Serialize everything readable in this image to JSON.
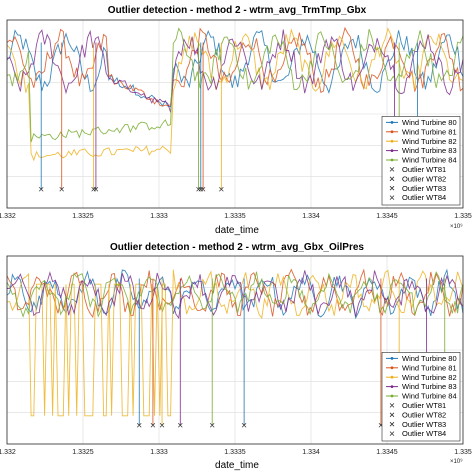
{
  "chart_data": [
    {
      "type": "line",
      "title": "Outlier detection - method 2 - wtrm_avg_TrmTmp_Gbx",
      "xlabel": "date_time",
      "ylabel": "",
      "x_ticks": [
        "1.332",
        "1.3325",
        "1.333",
        "1.3335",
        "1.334",
        "1.3345",
        "1.335"
      ],
      "x_exponent": "×10⁹",
      "xlim": [
        1.332,
        1.335
      ],
      "ylim": [
        0,
        1
      ],
      "grid": true,
      "legend_position": "bottom-right",
      "series": [
        {
          "name": "Wind Turbine 80",
          "color": "#1f77b4",
          "marker": "dot"
        },
        {
          "name": "Wind Turbine 81",
          "color": "#d9541f",
          "marker": "dot"
        },
        {
          "name": "Wind Turbine 82",
          "color": "#edb120",
          "marker": "dot"
        },
        {
          "name": "Wind Turbine 83",
          "color": "#7e2f8e",
          "marker": "dot"
        },
        {
          "name": "Wind Turbine 84",
          "color": "#77ac30",
          "marker": "dot"
        },
        {
          "name": "Outlier WT81",
          "color": "#333333",
          "marker": "x"
        },
        {
          "name": "Outlier WT82",
          "color": "#333333",
          "marker": "x"
        },
        {
          "name": "Outlier WT83",
          "color": "#333333",
          "marker": "x"
        },
        {
          "name": "Outlier WT84",
          "color": "#333333",
          "marker": "x"
        }
      ]
    },
    {
      "type": "line",
      "title": "Outlier detection - method 2 - wtrm_avg_Gbx_OilPres",
      "xlabel": "date_time",
      "ylabel": "",
      "x_ticks": [
        "1.332",
        "1.3325",
        "1.333",
        "1.3335",
        "1.334",
        "1.3345",
        "1.335"
      ],
      "x_exponent": "×10⁹",
      "xlim": [
        1.332,
        1.335
      ],
      "ylim": [
        0,
        1
      ],
      "grid": true,
      "legend_position": "bottom-right",
      "series": [
        {
          "name": "Wind Turbine 80",
          "color": "#1f77b4",
          "marker": "dot"
        },
        {
          "name": "Wind Turbine 81",
          "color": "#d9541f",
          "marker": "dot"
        },
        {
          "name": "Wind Turbine 82",
          "color": "#edb120",
          "marker": "dot"
        },
        {
          "name": "Wind Turbine 83",
          "color": "#7e2f8e",
          "marker": "dot"
        },
        {
          "name": "Wind Turbine 84",
          "color": "#77ac30",
          "marker": "dot"
        },
        {
          "name": "Outlier WT81",
          "color": "#333333",
          "marker": "x"
        },
        {
          "name": "Outlier WT82",
          "color": "#333333",
          "marker": "x"
        },
        {
          "name": "Outlier WT83",
          "color": "#333333",
          "marker": "x"
        },
        {
          "name": "Outlier WT84",
          "color": "#333333",
          "marker": "x"
        }
      ]
    }
  ]
}
